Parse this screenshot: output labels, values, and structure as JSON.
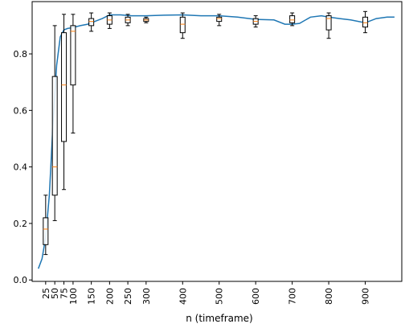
{
  "chart_data": {
    "type": "line",
    "title": "",
    "xlabel": "n (timeframe)",
    "ylabel": "",
    "xlim": [
      -12,
      1000
    ],
    "ylim": [
      -0.005,
      0.985
    ],
    "x_ticks": [
      25,
      50,
      75,
      100,
      150,
      200,
      250,
      300,
      400,
      500,
      600,
      700,
      800,
      900
    ],
    "x_tick_labels": [
      "25",
      "50",
      "75",
      "100",
      "150",
      "200",
      "250",
      "300",
      "400",
      "500",
      "600",
      "700",
      "800",
      "900"
    ],
    "y_ticks": [
      0.0,
      0.2,
      0.4,
      0.6,
      0.8
    ],
    "y_tick_labels": [
      "0.0",
      "0.2",
      "0.4",
      "0.6",
      "0.8"
    ],
    "grid": false,
    "legend": "none",
    "series_color": "#1f77b4",
    "median_color": "#ff7f0e",
    "line": {
      "x": [
        5,
        15,
        25,
        35,
        45,
        55,
        65,
        75,
        85,
        95,
        105,
        120,
        140,
        160,
        180,
        200,
        230,
        260,
        300,
        350,
        400,
        450,
        500,
        550,
        600,
        650,
        680,
        700,
        720,
        750,
        780,
        800,
        830,
        860,
        900,
        930,
        960,
        980
      ],
      "y": [
        0.04,
        0.075,
        0.15,
        0.3,
        0.55,
        0.76,
        0.86,
        0.885,
        0.89,
        0.892,
        0.895,
        0.9,
        0.905,
        0.915,
        0.925,
        0.938,
        0.938,
        0.935,
        0.935,
        0.937,
        0.938,
        0.935,
        0.935,
        0.93,
        0.922,
        0.92,
        0.905,
        0.905,
        0.908,
        0.93,
        0.935,
        0.93,
        0.925,
        0.92,
        0.91,
        0.925,
        0.93,
        0.93
      ]
    },
    "boxplots": [
      {
        "x": 25,
        "whislo": 0.09,
        "q1": 0.125,
        "med": 0.18,
        "q3": 0.22,
        "whishi": 0.3
      },
      {
        "x": 50,
        "whislo": 0.21,
        "q1": 0.3,
        "med": 0.4,
        "q3": 0.72,
        "whishi": 0.9
      },
      {
        "x": 75,
        "whislo": 0.32,
        "q1": 0.49,
        "med": 0.69,
        "q3": 0.875,
        "whishi": 0.94
      },
      {
        "x": 100,
        "whislo": 0.52,
        "q1": 0.69,
        "med": 0.88,
        "q3": 0.9,
        "whishi": 0.94
      },
      {
        "x": 150,
        "whislo": 0.88,
        "q1": 0.9,
        "med": 0.915,
        "q3": 0.925,
        "whishi": 0.945
      },
      {
        "x": 200,
        "whislo": 0.89,
        "q1": 0.905,
        "med": 0.92,
        "q3": 0.935,
        "whishi": 0.945
      },
      {
        "x": 250,
        "whislo": 0.9,
        "q1": 0.91,
        "med": 0.92,
        "q3": 0.93,
        "whishi": 0.94
      },
      {
        "x": 300,
        "whislo": 0.91,
        "q1": 0.915,
        "med": 0.92,
        "q3": 0.925,
        "whishi": 0.93
      },
      {
        "x": 400,
        "whislo": 0.855,
        "q1": 0.875,
        "med": 0.905,
        "q3": 0.93,
        "whishi": 0.945
      },
      {
        "x": 500,
        "whislo": 0.9,
        "q1": 0.915,
        "med": 0.925,
        "q3": 0.93,
        "whishi": 0.94
      },
      {
        "x": 600,
        "whislo": 0.895,
        "q1": 0.905,
        "med": 0.915,
        "q3": 0.925,
        "whishi": 0.935
      },
      {
        "x": 700,
        "whislo": 0.9,
        "q1": 0.91,
        "med": 0.92,
        "q3": 0.935,
        "whishi": 0.945
      },
      {
        "x": 800,
        "whislo": 0.855,
        "q1": 0.885,
        "med": 0.925,
        "q3": 0.935,
        "whishi": 0.945
      },
      {
        "x": 900,
        "whislo": 0.875,
        "q1": 0.895,
        "med": 0.91,
        "q3": 0.93,
        "whishi": 0.95
      }
    ]
  }
}
